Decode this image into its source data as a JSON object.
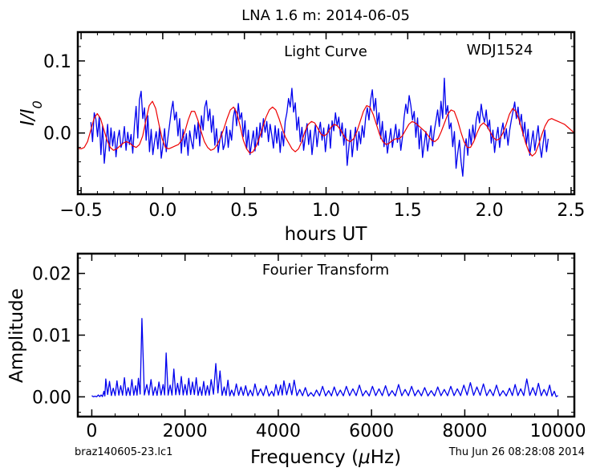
{
  "figure": {
    "suptitle": "LNA 1.6 m:  2014-06-05",
    "footer_left": "braz140605-23.lc1",
    "footer_right": "Thu Jun 26 08:28:08 2014"
  },
  "colors": {
    "observed": "#0000ee",
    "model": "#ee0000",
    "axes": "#000000"
  },
  "chart_data": [
    {
      "type": "line",
      "title": "Light Curve",
      "annotation": "WDJ1524",
      "xlabel": "hours UT",
      "ylabel": "I/I0",
      "xlim": [
        -0.52,
        2.52
      ],
      "ylim": [
        -0.085,
        0.14
      ],
      "xticks": [
        -0.5,
        0.0,
        0.5,
        1.0,
        1.5,
        2.0,
        2.5
      ],
      "xtick_labels": [
        "−0.5",
        "0.0",
        "0.5",
        "1.0",
        "1.5",
        "2.0",
        "2.5"
      ],
      "yticks": [
        0.0,
        0.1
      ],
      "ytick_labels": [
        "0.0",
        "0.1"
      ],
      "grid": false,
      "series": [
        {
          "role": "observed",
          "color": "#0000ee",
          "x_range": [
            -0.44,
            2.36
          ],
          "values": [
            0.015,
            -0.012,
            0.028,
            0.019,
            -0.005,
            0.023,
            -0.03,
            0.01,
            -0.042,
            -0.015,
            0.012,
            -0.025,
            0.007,
            -0.018,
            0.002,
            -0.033,
            -0.008,
            0.004,
            -0.02,
            -0.012,
            0.009,
            -0.024,
            0.001,
            -0.016,
            -0.002,
            -0.028,
            0.01,
            0.037,
            -0.007,
            0.046,
            0.058,
            0.02,
            0.035,
            -0.01,
            0.024,
            -0.026,
            0.005,
            -0.03,
            -0.012,
            0.002,
            -0.022,
            0.008,
            -0.035,
            -0.018,
            0.006,
            -0.026,
            -0.006,
            0.012,
            0.031,
            0.044,
            0.018,
            0.029,
            -0.004,
            0.02,
            -0.028,
            0.005,
            -0.019,
            -0.001,
            -0.031,
            0.003,
            -0.012,
            -0.022,
            0.011,
            -0.008,
            0.015,
            -0.018,
            0.024,
            0.004,
            0.036,
            0.045,
            0.017,
            0.033,
            0.001,
            0.024,
            -0.017,
            0.006,
            -0.027,
            -0.01,
            0.002,
            -0.023,
            -0.015,
            0.009,
            -0.02,
            0.004,
            -0.01,
            0.021,
            0.034,
            0.01,
            0.041,
            0.019,
            0.028,
            -0.005,
            0.017,
            -0.022,
            0.004,
            -0.03,
            -0.013,
            0.003,
            -0.025,
            0.008,
            -0.017,
            0.014,
            -0.006,
            0.02,
            0.001,
            0.016,
            -0.012,
            0.012,
            -0.003,
            -0.021,
            0.01,
            -0.014,
            0.006,
            -0.027,
            0.002,
            -0.018,
            0.016,
            0.028,
            0.048,
            0.036,
            0.062,
            0.029,
            0.042,
            0.004,
            0.022,
            -0.012,
            0.008,
            -0.024,
            -0.005,
            0.013,
            -0.016,
            0.004,
            -0.03,
            -0.008,
            0.011,
            -0.019,
            0.002,
            0.015,
            -0.01,
            0.007,
            -0.026,
            -0.003,
            0.012,
            -0.021,
            0.017,
            0.003,
            0.028,
            0.01,
            0.022,
            -0.004,
            0.014,
            -0.017,
            0.006,
            -0.045,
            -0.02,
            0.004,
            -0.033,
            -0.01,
            0.008,
            -0.024,
            0.002,
            -0.015,
            0.01,
            -0.006,
            0.021,
            0.035,
            0.018,
            0.046,
            0.06,
            0.031,
            0.048,
            0.012,
            0.028,
            -0.008,
            0.016,
            -0.019,
            0.003,
            -0.028,
            -0.011,
            0.006,
            -0.02,
            -0.004,
            0.012,
            -0.013,
            0.005,
            -0.024,
            -0.006,
            0.022,
            0.04,
            0.027,
            0.052,
            0.038,
            0.018,
            0.03,
            -0.006,
            0.021,
            -0.022,
            0.005,
            -0.034,
            -0.015,
            0.002,
            -0.025,
            -0.008,
            0.01,
            -0.018,
            0.003,
            0.017,
            0.032,
            0.009,
            0.044,
            0.02,
            0.076,
            0.026,
            0.038,
            0.006,
            0.014,
            -0.019,
            0.002,
            -0.049,
            -0.028,
            -0.01,
            -0.04,
            -0.06,
            -0.022,
            -0.008,
            -0.031,
            0.005,
            -0.016,
            0.011,
            -0.009,
            0.018,
            0.03,
            0.014,
            0.04,
            0.024,
            0.015,
            0.032,
            0.006,
            0.018,
            -0.014,
            0.004,
            -0.027,
            -0.006,
            0.008,
            -0.02,
            0.002,
            0.014,
            -0.008,
            0.006,
            -0.017,
            0.004,
            0.018,
            0.03,
            0.043,
            0.02,
            0.036,
            0.012,
            0.026,
            -0.004,
            0.015,
            -0.016,
            0.005,
            -0.031,
            -0.012,
            0.003,
            -0.024,
            -0.006,
            0.01,
            -0.018,
            -0.034,
            -0.014,
            0.004,
            -0.026,
            -0.008
          ]
        },
        {
          "role": "model",
          "color": "#ee0000",
          "x_range": [
            -0.52,
            2.52
          ],
          "values": [
            -0.021,
            -0.022,
            -0.02,
            -0.012,
            0.004,
            0.02,
            0.027,
            0.02,
            0.005,
            -0.01,
            -0.02,
            -0.024,
            -0.022,
            -0.018,
            -0.014,
            -0.012,
            -0.014,
            -0.018,
            -0.02,
            -0.016,
            -0.004,
            0.018,
            0.038,
            0.044,
            0.034,
            0.012,
            -0.008,
            -0.02,
            -0.022,
            -0.02,
            -0.018,
            -0.016,
            -0.01,
            0.002,
            0.018,
            0.03,
            0.03,
            0.018,
            0.002,
            -0.012,
            -0.02,
            -0.024,
            -0.022,
            -0.016,
            -0.006,
            0.006,
            0.02,
            0.032,
            0.036,
            0.028,
            0.01,
            -0.01,
            -0.022,
            -0.028,
            -0.026,
            -0.018,
            -0.006,
            0.008,
            0.022,
            0.032,
            0.036,
            0.032,
            0.02,
            0.006,
            -0.006,
            -0.014,
            -0.022,
            -0.026,
            -0.022,
            -0.012,
            0.002,
            0.012,
            0.016,
            0.014,
            0.006,
            -0.002,
            -0.004,
            0.0,
            0.008,
            0.012,
            0.01,
            0.004,
            -0.004,
            -0.01,
            -0.012,
            -0.008,
            0.002,
            0.016,
            0.03,
            0.038,
            0.036,
            0.026,
            0.012,
            -0.002,
            -0.012,
            -0.016,
            -0.014,
            -0.01,
            -0.008,
            -0.008,
            -0.004,
            0.004,
            0.012,
            0.016,
            0.014,
            0.01,
            0.006,
            0.002,
            -0.004,
            -0.01,
            -0.012,
            -0.008,
            0.002,
            0.014,
            0.026,
            0.032,
            0.03,
            0.018,
            0.002,
            -0.012,
            -0.02,
            -0.02,
            -0.012,
            0.0,
            0.01,
            0.014,
            0.01,
            0.002,
            -0.006,
            -0.01,
            -0.008,
            0.0,
            0.012,
            0.026,
            0.034,
            0.03,
            0.018,
            0.002,
            -0.014,
            -0.026,
            -0.032,
            -0.028,
            -0.016,
            -0.002,
            0.01,
            0.018,
            0.02,
            0.018,
            0.016,
            0.014,
            0.012,
            0.008,
            0.004,
            0.0
          ]
        }
      ]
    },
    {
      "type": "line",
      "title": "Fourier Transform",
      "xlabel": "Frequency (μHz)",
      "ylabel": "Amplitude",
      "xlim": [
        -300,
        10350
      ],
      "ylim": [
        -0.0032,
        0.0232
      ],
      "xticks": [
        0,
        2000,
        4000,
        6000,
        8000,
        10000
      ],
      "xtick_labels": [
        "0",
        "2000",
        "4000",
        "6000",
        "8000",
        "10000"
      ],
      "yticks": [
        0.0,
        0.01,
        0.02
      ],
      "ytick_labels": [
        "0.00",
        "0.01",
        "0.02"
      ],
      "grid": false,
      "series": [
        {
          "role": "observed",
          "color": "#0000ee",
          "x_range": [
            0,
            10000
          ],
          "peaks": [
            [
              0,
              0.0002
            ],
            [
              70,
              0.0001
            ],
            [
              140,
              0.0003
            ],
            [
              200,
              0.0003
            ],
            [
              260,
              0.0009
            ],
            [
              300,
              0.0029
            ],
            [
              380,
              0.0025
            ],
            [
              460,
              0.0014
            ],
            [
              540,
              0.0026
            ],
            [
              620,
              0.0018
            ],
            [
              700,
              0.0031
            ],
            [
              780,
              0.0015
            ],
            [
              860,
              0.0028
            ],
            [
              940,
              0.0018
            ],
            [
              1000,
              0.003
            ],
            [
              1075,
              0.0127
            ],
            [
              1180,
              0.002
            ],
            [
              1270,
              0.0028
            ],
            [
              1360,
              0.0016
            ],
            [
              1440,
              0.0024
            ],
            [
              1530,
              0.002
            ],
            [
              1595,
              0.0071
            ],
            [
              1680,
              0.0019
            ],
            [
              1760,
              0.0045
            ],
            [
              1840,
              0.0022
            ],
            [
              1920,
              0.0033
            ],
            [
              2000,
              0.002
            ],
            [
              2080,
              0.003
            ],
            [
              2160,
              0.0024
            ],
            [
              2240,
              0.0031
            ],
            [
              2320,
              0.0016
            ],
            [
              2400,
              0.0025
            ],
            [
              2480,
              0.0018
            ],
            [
              2560,
              0.0028
            ],
            [
              2660,
              0.0054
            ],
            [
              2750,
              0.0042
            ],
            [
              2840,
              0.0016
            ],
            [
              2920,
              0.0027
            ],
            [
              3000,
              0.0011
            ],
            [
              3100,
              0.0021
            ],
            [
              3200,
              0.0016
            ],
            [
              3300,
              0.0018
            ],
            [
              3400,
              0.0011
            ],
            [
              3500,
              0.0021
            ],
            [
              3620,
              0.0013
            ],
            [
              3740,
              0.0018
            ],
            [
              3860,
              0.0009
            ],
            [
              3950,
              0.002
            ],
            [
              4050,
              0.0019
            ],
            [
              4120,
              0.0026
            ],
            [
              4240,
              0.0022
            ],
            [
              4340,
              0.0027
            ],
            [
              4460,
              0.0012
            ],
            [
              4580,
              0.0015
            ],
            [
              4700,
              0.0007
            ],
            [
              4820,
              0.0011
            ],
            [
              4950,
              0.0017
            ],
            [
              5080,
              0.001
            ],
            [
              5200,
              0.0016
            ],
            [
              5330,
              0.0011
            ],
            [
              5460,
              0.0017
            ],
            [
              5600,
              0.0013
            ],
            [
              5740,
              0.0019
            ],
            [
              5880,
              0.001
            ],
            [
              6020,
              0.0017
            ],
            [
              6160,
              0.0013
            ],
            [
              6300,
              0.0018
            ],
            [
              6440,
              0.001
            ],
            [
              6580,
              0.002
            ],
            [
              6720,
              0.0012
            ],
            [
              6860,
              0.0017
            ],
            [
              7000,
              0.0011
            ],
            [
              7140,
              0.0015
            ],
            [
              7280,
              0.001
            ],
            [
              7420,
              0.0016
            ],
            [
              7560,
              0.0012
            ],
            [
              7700,
              0.0017
            ],
            [
              7840,
              0.0013
            ],
            [
              7980,
              0.0019
            ],
            [
              8120,
              0.0023
            ],
            [
              8260,
              0.0016
            ],
            [
              8400,
              0.0021
            ],
            [
              8540,
              0.0012
            ],
            [
              8680,
              0.0019
            ],
            [
              8820,
              0.001
            ],
            [
              8960,
              0.0014
            ],
            [
              9080,
              0.002
            ],
            [
              9200,
              0.0013
            ],
            [
              9330,
              0.0029
            ],
            [
              9460,
              0.0015
            ],
            [
              9580,
              0.0022
            ],
            [
              9700,
              0.0012
            ],
            [
              9820,
              0.0019
            ],
            [
              9920,
              0.0009
            ],
            [
              10000,
              0.0002
            ]
          ]
        }
      ]
    }
  ]
}
